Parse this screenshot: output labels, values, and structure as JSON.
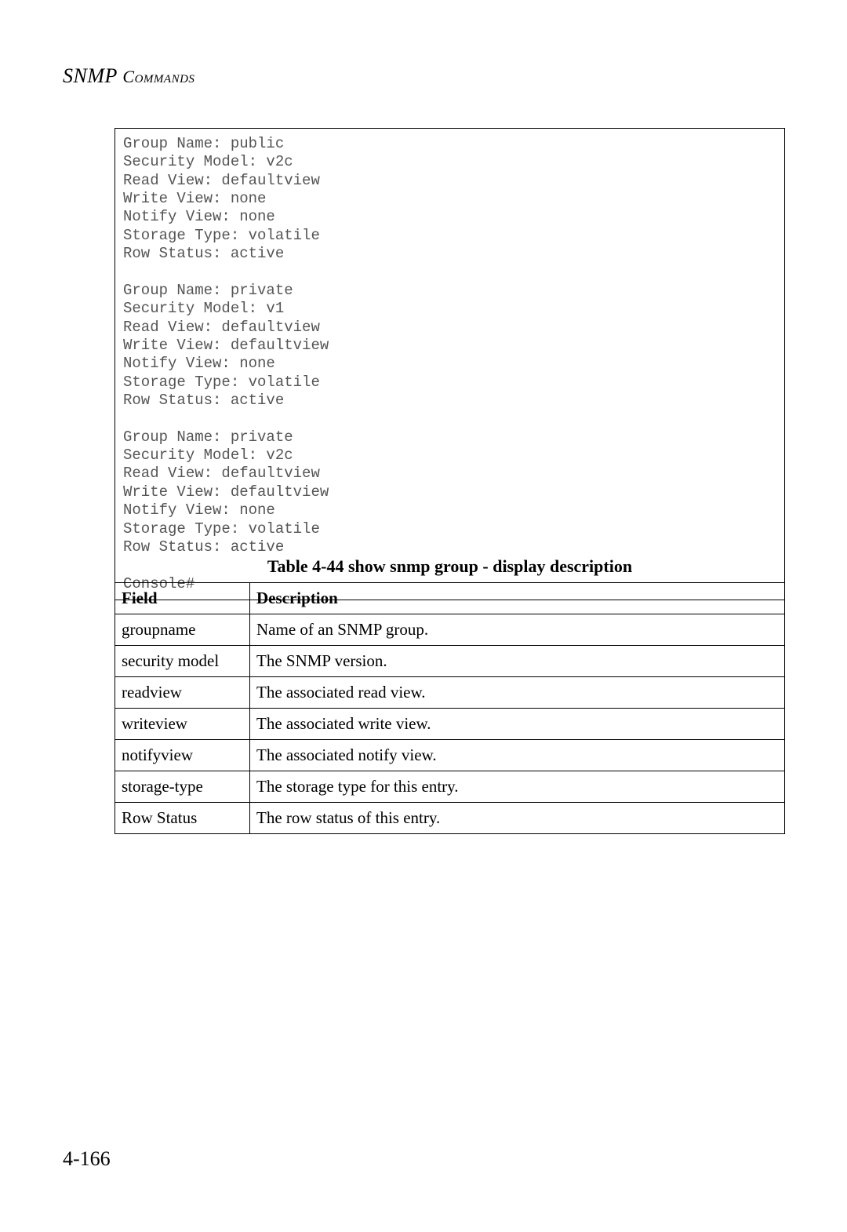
{
  "header": {
    "main": "SNMP ",
    "sub": "Commands"
  },
  "console": {
    "text": "Group Name: public\nSecurity Model: v2c\nRead View: defaultview\nWrite View: none\nNotify View: none\nStorage Type: volatile\nRow Status: active\n\nGroup Name: private\nSecurity Model: v1\nRead View: defaultview\nWrite View: defaultview\nNotify View: none\nStorage Type: volatile\nRow Status: active\n\nGroup Name: private\nSecurity Model: v2c\nRead View: defaultview\nWrite View: defaultview\nNotify View: none\nStorage Type: volatile\nRow Status: active\n\nConsole#"
  },
  "table": {
    "caption": "Table 4-44   show snmp group - display description",
    "columns": [
      "Field",
      "Description"
    ],
    "rows": [
      [
        "groupname",
        "Name of an SNMP group."
      ],
      [
        "security model",
        "The SNMP version."
      ],
      [
        "readview",
        "The associated read view."
      ],
      [
        "writeview",
        "The associated write view."
      ],
      [
        "notifyview",
        "The associated notify view."
      ],
      [
        "storage-type",
        "The storage type for this entry."
      ],
      [
        "Row Status",
        "The row status of this entry."
      ]
    ]
  },
  "pageNumber": "4-166",
  "styles": {
    "page_bg": "#ffffff",
    "text_color": "#000000",
    "console_text_color": "#555555",
    "border_color": "#000000",
    "body_font": "Georgia, serif",
    "mono_font": "Courier New, monospace",
    "header_fontsize": 26,
    "caption_fontsize": 22,
    "table_fontsize": 21,
    "console_fontsize": 19,
    "pagenum_fontsize": 26
  }
}
